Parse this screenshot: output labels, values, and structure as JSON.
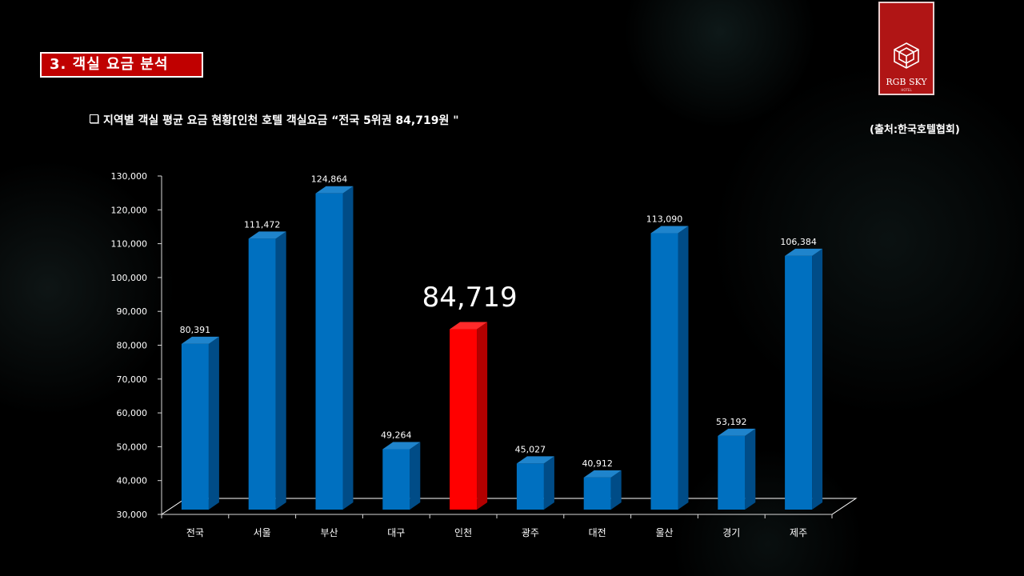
{
  "header": {
    "section_title": "3. 객실 요금 분석",
    "subtitle": "지역별 객실 평균 요금 현황[인천 호텔 객실요금 “전국 5위권 84,719원 \"",
    "source": "(출처:한국호텔협회)"
  },
  "logo": {
    "text": "RGB SKY",
    "subtext": "HOTEL",
    "icon": "hotel-cube-logo-icon"
  },
  "colors": {
    "bar": "#0070c0",
    "bar_side": "#004c87",
    "bar_top": "#1f84cc",
    "highlight_bar": "#ff0000",
    "highlight_side": "#b30000",
    "highlight_top": "#ff2a2a",
    "reference_line": "#ff5a14",
    "title_bg": "#c00000"
  },
  "chart_data": {
    "type": "bar",
    "categories": [
      "전국",
      "서울",
      "부산",
      "대구",
      "인천",
      "광주",
      "대전",
      "울산",
      "경기",
      "제주"
    ],
    "values": [
      80391,
      111472,
      124864,
      49264,
      84719,
      45027,
      40912,
      113090,
      53192,
      106384
    ],
    "data_labels": [
      "80,391",
      "111,472",
      "124,864",
      "49,264",
      "",
      "45,027",
      "40,912",
      "113,090",
      "53,192",
      "106,384"
    ],
    "highlight_index": 4,
    "highlight_label": "84,719",
    "reference_line_value": 84719,
    "ylim": [
      30000,
      130000
    ],
    "yticks": [
      30000,
      40000,
      50000,
      60000,
      70000,
      80000,
      90000,
      100000,
      110000,
      120000,
      130000
    ],
    "ytick_labels": [
      "30,000",
      "40,000",
      "50,000",
      "60,000",
      "70,000",
      "80,000",
      "90,000",
      "100,000",
      "110,000",
      "120,000",
      "130,000"
    ],
    "grid": false,
    "legend": "none",
    "title": "",
    "xlabel": "",
    "ylabel": ""
  }
}
